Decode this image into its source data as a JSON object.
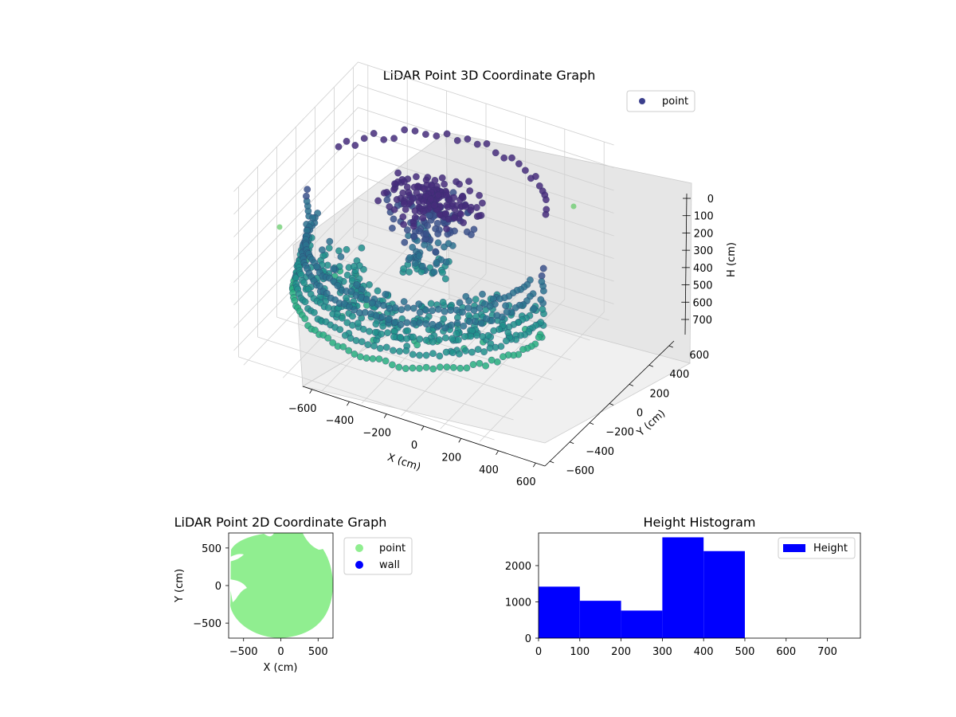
{
  "figure": {
    "colors": {
      "viridis_dark": "#440154",
      "viridis_mid": "#31688e",
      "viridis_teal": "#21918c",
      "viridis_green": "#5ec962",
      "point_2d": "#90ee90",
      "wall": "#0000ff",
      "histogram": "#0000ff",
      "pane": "#f2f2f2",
      "legend_point_3d": "#3b3f8c"
    }
  },
  "chart_data": [
    {
      "type": "scatter",
      "projection": "3d",
      "title": "LiDAR Point 3D Coordinate Graph",
      "xlabel": "X (cm)",
      "ylabel": "Y (cm)",
      "zlabel": "H (cm)",
      "x_ticks": [
        "−600",
        "−400",
        "−200",
        "0",
        "200",
        "400",
        "600"
      ],
      "y_ticks": [
        "−600",
        "−400",
        "−200",
        "0",
        "200",
        "400",
        "600"
      ],
      "z_ticks": [
        "0",
        "100",
        "200",
        "300",
        "400",
        "500",
        "600",
        "700"
      ],
      "xlim": [
        -650,
        650
      ],
      "ylim": [
        -650,
        650
      ],
      "zlim": [
        750,
        0
      ],
      "z_inverted": true,
      "legend": {
        "labels": [
          "point"
        ],
        "position": "top-right"
      },
      "series": [
        {
          "name": "point",
          "description_groups": [
            {
              "shape": "outer bowl ring",
              "radius_cm": 600,
              "height_cm": [
                350,
                550
              ]
            },
            {
              "shape": "central canopy",
              "radius_cm": 250,
              "height_cm": [
                150,
                250
              ]
            },
            {
              "shape": "far arc",
              "radius_cm": 550,
              "height_cm": [
                100,
                150
              ]
            }
          ]
        }
      ]
    },
    {
      "type": "scatter",
      "title": "LiDAR Point 2D Coordinate Graph",
      "xlabel": "X (cm)",
      "ylabel": "Y (cm)",
      "x_ticks": [
        "−500",
        "0",
        "500"
      ],
      "y_ticks": [
        "500",
        "0",
        "−500"
      ],
      "xlim": [
        -700,
        700
      ],
      "ylim": [
        -700,
        700
      ],
      "legend": {
        "labels": [
          "point",
          "wall"
        ],
        "position": "outside right"
      },
      "series": [
        {
          "name": "point",
          "shape": "filled disc of radius ~600 cm with gaps"
        },
        {
          "name": "wall",
          "values": []
        }
      ]
    },
    {
      "type": "bar",
      "subtype": "histogram",
      "title": "Height Histogram",
      "xlabel": "",
      "ylabel": "",
      "x_ticks": [
        "0",
        "100",
        "200",
        "300",
        "400",
        "500",
        "600",
        "700"
      ],
      "y_ticks": [
        "0",
        "1000",
        "2000"
      ],
      "xlim": [
        0,
        780
      ],
      "ylim": [
        0,
        2900
      ],
      "bin_edges": [
        0,
        100,
        200,
        300,
        400,
        500
      ],
      "values": [
        1420,
        1030,
        760,
        2780,
        2400
      ],
      "legend": {
        "labels": [
          "Height"
        ],
        "position": "top-right"
      }
    }
  ]
}
